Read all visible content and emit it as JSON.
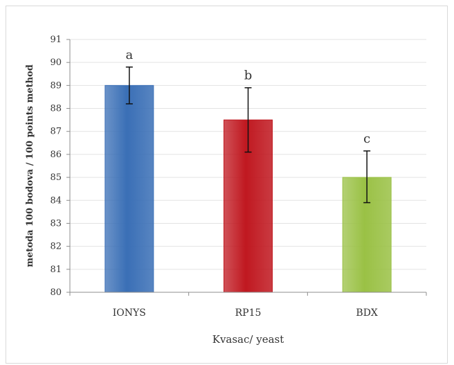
{
  "chart_data": {
    "type": "bar",
    "categories": [
      "IONYS",
      "RP15",
      "BDX"
    ],
    "values": [
      89.0,
      87.5,
      85.0
    ],
    "error_low": [
      88.2,
      86.1,
      83.9
    ],
    "error_high": [
      89.8,
      88.9,
      86.15
    ],
    "significance_letters": [
      "a",
      "b",
      "c"
    ],
    "bar_colors": [
      "#3a6fb6",
      "#c01820",
      "#9ac145"
    ],
    "xlabel": "Kvasac/ yeast",
    "ylabel": "metoda 100 bodova / 100 points method",
    "ylim": [
      80,
      91
    ],
    "yticks": [
      80,
      81,
      82,
      83,
      84,
      85,
      86,
      87,
      88,
      89,
      90,
      91
    ],
    "grid": true
  }
}
